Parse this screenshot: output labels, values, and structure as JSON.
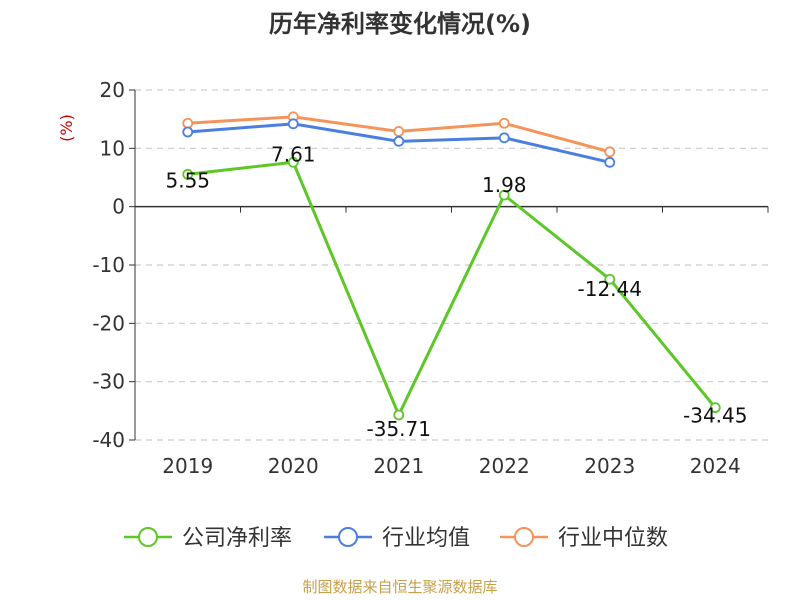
{
  "chart_data": {
    "type": "line",
    "title": "历年净利率变化情况(%)",
    "ylabel": "(%)",
    "xlabel": "",
    "categories": [
      "2019",
      "2020",
      "2021",
      "2022",
      "2023",
      "2024"
    ],
    "ylim": [
      -40,
      20
    ],
    "yticks": [
      20,
      10,
      0,
      -10,
      -20,
      -30,
      -40
    ],
    "grid": true,
    "legend_position": "bottom",
    "series": [
      {
        "name": "公司净利率",
        "color": "#5cc726",
        "values": [
          5.55,
          7.61,
          -35.71,
          1.98,
          -12.44,
          -34.45
        ],
        "data_labels": [
          "5.55",
          "7.61",
          "-35.71",
          "1.98",
          "-12.44",
          "-34.45"
        ]
      },
      {
        "name": "行业均值",
        "color": "#4a7fe0",
        "values": [
          12.8,
          14.2,
          11.2,
          11.8,
          7.6,
          null
        ]
      },
      {
        "name": "行业中位数",
        "color": "#f5935a",
        "values": [
          14.3,
          15.4,
          12.9,
          14.3,
          9.4,
          null
        ]
      }
    ]
  },
  "source": "制图数据来自恒生聚源数据库"
}
